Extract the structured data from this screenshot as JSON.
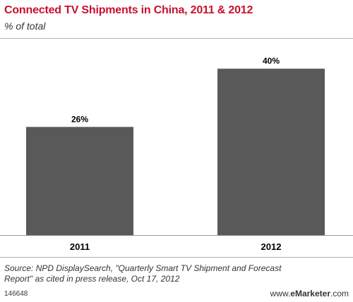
{
  "header": {
    "title": "Connected TV Shipments in China, 2011 & 2012",
    "subtitle": "% of total"
  },
  "chart_data": {
    "type": "bar",
    "title": "Connected TV Shipments in China, 2011 & 2012",
    "subtitle": "% of total",
    "categories": [
      "2011",
      "2012"
    ],
    "values": [
      26,
      40
    ],
    "value_labels": [
      "26%",
      "40%"
    ],
    "ylim": [
      0,
      45
    ],
    "grid": false,
    "legend": "none",
    "colors": {
      "bar": "#595959",
      "background": "#ffffff",
      "axis": "#999999"
    }
  },
  "footer": {
    "source_line1": "Source: NPD DisplaySearch, \"Quarterly Smart TV Shipment and Forecast",
    "source_line2": "Report\" as cited in press release, Oct 17, 2012",
    "chart_id": "146648",
    "brand_prefix": "www.",
    "brand_name": "eMarketer",
    "brand_suffix": ".com"
  }
}
